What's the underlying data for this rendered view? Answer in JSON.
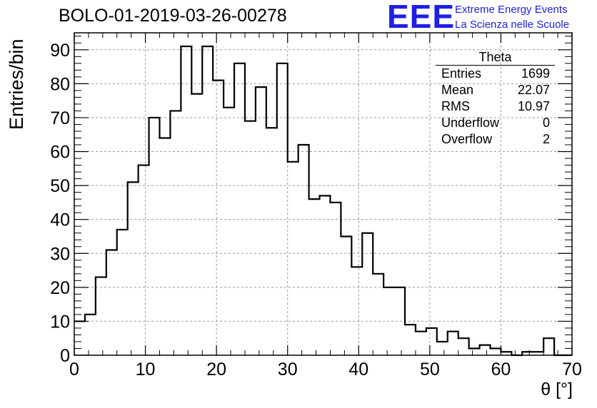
{
  "header": {
    "title": "BOLO-01-2019-03-26-00278",
    "logo_letters": "EEE",
    "logo_line1": "Extreme Energy Events",
    "logo_line2": "La Scienza nelle Scuole",
    "logo_color": "#1f1fe6"
  },
  "stats": {
    "title": "Theta",
    "rows": [
      {
        "label": "Entries",
        "value": "1699"
      },
      {
        "label": "Mean",
        "value": "22.07"
      },
      {
        "label": "RMS",
        "value": "10.97"
      },
      {
        "label": "Underflow",
        "value": "0"
      },
      {
        "label": "Overflow",
        "value": "2"
      }
    ]
  },
  "chart_data": {
    "type": "histogram",
    "title": "BOLO-01-2019-03-26-00278",
    "xlabel": "θ [°]",
    "ylabel": "Entries/bin",
    "xlim": [
      0,
      70
    ],
    "ylim": [
      0,
      95
    ],
    "grid": true,
    "bin_width": 1.5,
    "bin_start": 0,
    "x_ticks": [
      0,
      10,
      20,
      30,
      40,
      50,
      60,
      70
    ],
    "y_ticks": [
      0,
      10,
      20,
      30,
      40,
      50,
      60,
      70,
      80,
      90
    ],
    "values": [
      10,
      12,
      23,
      31,
      37,
      51,
      56,
      70,
      64,
      72,
      91,
      77,
      91,
      81,
      73,
      86,
      69,
      79,
      67,
      86,
      57,
      62,
      46,
      47,
      45,
      35,
      26,
      36,
      24,
      20,
      20,
      9,
      7,
      8,
      4,
      7,
      5,
      2,
      3,
      2,
      1,
      0,
      1,
      1,
      5,
      0,
      0
    ],
    "line_color": "#000000"
  }
}
